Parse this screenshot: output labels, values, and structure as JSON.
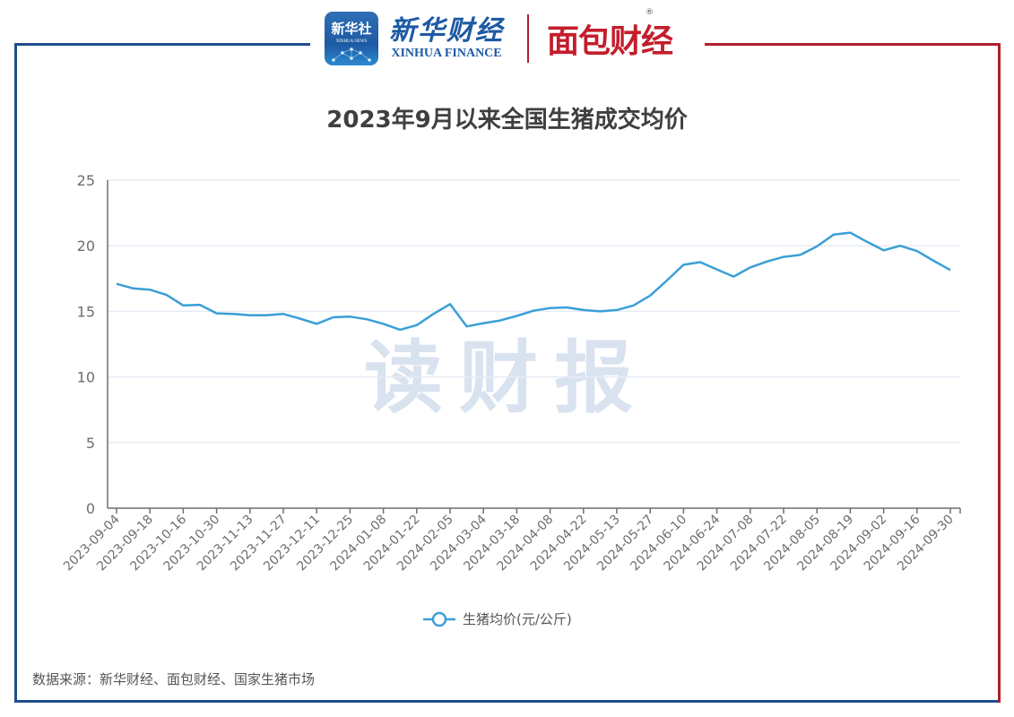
{
  "header": {
    "logo_xinhua_app_cn": "新华社",
    "logo_xinhua_app_en": "XINHUA NEWS",
    "logo_xinhua_finance_cn": "新华财经",
    "logo_xinhua_finance_en": "XINHUA FINANCE",
    "logo_mianbao_cn": "面包财经",
    "logo_mianbao_reg": "®"
  },
  "watermark": "读财报",
  "footer": {
    "source": "数据来源：新华财经、面包财经、国家生猪市场"
  },
  "colors": {
    "line": "#3a9fd6",
    "frame_blue": "#1f4e8c",
    "frame_red": "#b01f2e",
    "grid": "#e8ebf4",
    "axis": "#6e6e6e",
    "watermark": "#c9d6e8"
  },
  "chart_data": {
    "type": "line",
    "title": "2023年9月以来全国生猪成交均价",
    "xlabel": "",
    "ylabel": "",
    "ylim": [
      0,
      25
    ],
    "yticks": [
      0,
      5,
      10,
      15,
      20,
      25
    ],
    "grid": true,
    "legend_position": "bottom",
    "x_tick_labels": [
      "2023-09-04",
      "2023-09-18",
      "2023-10-16",
      "2023-10-30",
      "2023-11-13",
      "2023-11-27",
      "2023-12-11",
      "2023-12-25",
      "2024-01-08",
      "2024-01-22",
      "2024-02-05",
      "2024-03-04",
      "2024-03-18",
      "2024-04-08",
      "2024-04-22",
      "2024-05-13",
      "2024-05-27",
      "2024-06-10",
      "2024-06-24",
      "2024-07-08",
      "2024-07-22",
      "2024-08-05",
      "2024-08-19",
      "2024-09-02",
      "2024-09-16",
      "2024-09-30"
    ],
    "series": [
      {
        "name": "生猪均价(元/公斤)",
        "values": [
          17.1,
          16.75,
          16.65,
          16.25,
          15.45,
          15.5,
          14.85,
          14.8,
          14.7,
          14.7,
          14.8,
          14.45,
          14.05,
          14.55,
          14.6,
          14.4,
          14.05,
          13.6,
          13.95,
          14.8,
          15.55,
          13.85,
          14.1,
          14.3,
          14.65,
          15.05,
          15.25,
          15.3,
          15.1,
          15.0,
          15.1,
          15.45,
          16.2,
          17.35,
          18.55,
          18.75,
          18.2,
          17.65,
          18.35,
          18.8,
          19.15,
          19.3,
          19.95,
          20.85,
          21.0,
          20.3,
          19.65,
          20.0,
          19.6,
          18.85,
          18.15
        ]
      }
    ]
  }
}
